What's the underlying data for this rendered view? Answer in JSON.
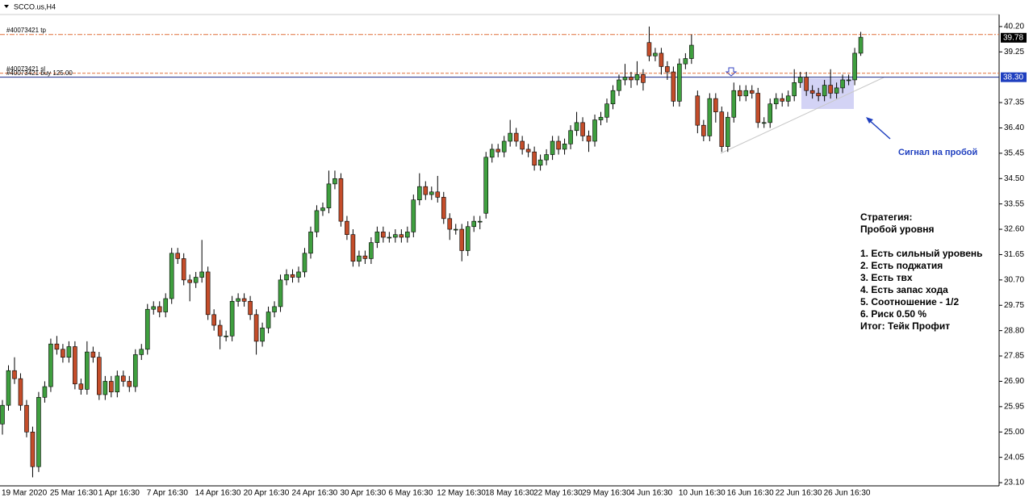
{
  "header": {
    "symbol": "SCCO.us,H4"
  },
  "chart_data": {
    "type": "candlestick",
    "categories": [
      "19 Mar 2020",
      null,
      null,
      null,
      null,
      null,
      null,
      null,
      "25 Mar 16:30",
      null,
      null,
      null,
      null,
      null,
      null,
      null,
      "1 Apr 16:30",
      null,
      null,
      null,
      null,
      null,
      null,
      null,
      "7 Apr 16:30",
      null,
      null,
      null,
      null,
      null,
      null,
      null,
      "14 Apr 16:30",
      null,
      null,
      null,
      null,
      null,
      null,
      null,
      "20 Apr 16:30",
      null,
      null,
      null,
      null,
      null,
      null,
      null,
      "24 Apr 16:30",
      null,
      null,
      null,
      null,
      null,
      null,
      null,
      "30 Apr 16:30",
      null,
      null,
      null,
      null,
      null,
      null,
      null,
      "6 May 16:30",
      null,
      null,
      null,
      null,
      null,
      null,
      null,
      "12 May 16:30",
      null,
      null,
      null,
      null,
      null,
      null,
      null,
      "18 May 16:30",
      null,
      null,
      null,
      null,
      null,
      null,
      null,
      "22 May 16:30",
      null,
      null,
      null,
      null,
      null,
      null,
      null,
      "29 May 16:30",
      null,
      null,
      null,
      null,
      null,
      null,
      null,
      "4 Jun 16:30",
      null,
      null,
      null,
      null,
      null,
      null,
      null,
      "10 Jun 16:30",
      null,
      null,
      null,
      null,
      null,
      null,
      null,
      "16 Jun 16:30",
      null,
      null,
      null,
      null,
      null,
      null,
      null,
      "22 Jun 16:30",
      null,
      null,
      null,
      null,
      null,
      null,
      null,
      "26 Jun 16:30",
      null,
      null,
      null,
      null,
      null,
      null
    ],
    "open": [
      25.3,
      26.0,
      27.3,
      27.0,
      26.0,
      25.0,
      23.7,
      26.3,
      26.7,
      28.3,
      28.1,
      27.8,
      28.2,
      26.8,
      26.6,
      28.0,
      27.8,
      26.4,
      26.9,
      26.5,
      27.1,
      26.9,
      26.7,
      27.9,
      28.1,
      29.6,
      29.7,
      29.5,
      30.0,
      31.7,
      31.5,
      30.7,
      30.6,
      30.8,
      31.0,
      29.4,
      29.0,
      28.6,
      28.6,
      29.9,
      30.0,
      29.9,
      29.4,
      28.4,
      28.9,
      29.5,
      29.7,
      30.7,
      30.9,
      30.8,
      31.0,
      31.7,
      32.5,
      33.3,
      33.4,
      34.3,
      34.5,
      32.9,
      32.4,
      31.4,
      31.6,
      31.5,
      32.1,
      32.5,
      32.3,
      32.3,
      32.4,
      32.3,
      32.5,
      33.7,
      34.2,
      33.9,
      34.0,
      33.8,
      33.0,
      32.6,
      32.6,
      31.8,
      32.7,
      32.9,
      33.2,
      35.3,
      35.6,
      35.5,
      35.9,
      36.2,
      35.9,
      35.6,
      35.5,
      35.0,
      35.2,
      35.4,
      35.9,
      35.6,
      35.8,
      36.3,
      36.6,
      36.1,
      35.9,
      36.7,
      36.8,
      37.3,
      37.8,
      38.2,
      38.3,
      38.2,
      38.4,
      39.6,
      39.1,
      39.2,
      38.7,
      38.5,
      37.4,
      38.8,
      39.0,
      37.6,
      36.5,
      36.1,
      37.5,
      37.0,
      35.7,
      36.8,
      37.8,
      37.6,
      37.8,
      37.7,
      36.6,
      36.6,
      37.3,
      37.5,
      37.4,
      37.6,
      38.1,
      38.3,
      37.8,
      37.7,
      37.6,
      38.0,
      37.7,
      37.9,
      38.2,
      38.2,
      39.2
    ],
    "high": [
      26.2,
      27.5,
      27.8,
      27.2,
      26.2,
      25.2,
      26.5,
      26.9,
      28.5,
      28.6,
      28.3,
      28.4,
      28.4,
      27.0,
      28.4,
      28.2,
      28.0,
      27.1,
      27.1,
      27.3,
      27.3,
      27.1,
      28.1,
      28.3,
      29.8,
      29.9,
      29.9,
      30.2,
      31.9,
      31.9,
      31.7,
      30.9,
      31.0,
      32.2,
      31.2,
      29.6,
      29.2,
      28.8,
      30.1,
      30.2,
      30.2,
      30.1,
      29.6,
      29.1,
      29.7,
      29.9,
      30.9,
      31.1,
      31.1,
      31.2,
      31.9,
      32.7,
      33.5,
      33.6,
      34.8,
      34.8,
      34.7,
      33.1,
      32.6,
      31.8,
      31.8,
      32.3,
      32.7,
      32.7,
      32.5,
      32.6,
      32.6,
      32.7,
      33.9,
      34.7,
      34.4,
      34.2,
      34.6,
      34.0,
      33.2,
      32.8,
      32.8,
      32.9,
      33.1,
      33.1,
      35.5,
      35.8,
      35.8,
      36.1,
      36.7,
      36.4,
      36.1,
      35.8,
      35.7,
      35.4,
      35.6,
      36.1,
      36.1,
      36.0,
      36.5,
      37.0,
      36.8,
      36.3,
      36.9,
      37.0,
      37.5,
      38.0,
      38.4,
      38.8,
      38.5,
      38.9,
      38.6,
      40.2,
      39.4,
      39.4,
      38.9,
      38.7,
      39.0,
      39.2,
      39.9,
      37.8,
      36.7,
      37.7,
      37.7,
      37.2,
      37.0,
      38.1,
      38.0,
      38.0,
      38.0,
      37.9,
      36.8,
      37.5,
      37.7,
      37.7,
      37.8,
      38.6,
      38.5,
      38.5,
      38.0,
      37.9,
      38.2,
      38.6,
      38.1,
      38.4,
      38.4,
      39.4,
      40.0
    ],
    "low": [
      24.9,
      25.8,
      26.8,
      25.8,
      24.8,
      23.3,
      23.5,
      26.1,
      26.5,
      27.9,
      27.6,
      27.6,
      26.6,
      26.4,
      26.4,
      27.6,
      26.2,
      26.2,
      26.3,
      26.3,
      26.7,
      26.5,
      26.5,
      27.7,
      27.9,
      29.4,
      29.3,
      29.3,
      29.8,
      31.3,
      30.5,
      29.9,
      30.4,
      30.6,
      29.2,
      28.8,
      28.1,
      28.4,
      28.4,
      29.7,
      29.7,
      29.2,
      27.9,
      28.2,
      28.7,
      29.3,
      29.5,
      30.5,
      30.6,
      30.6,
      30.8,
      31.5,
      32.3,
      33.1,
      33.2,
      34.1,
      32.7,
      32.2,
      31.2,
      31.2,
      31.3,
      31.3,
      31.9,
      32.1,
      32.1,
      32.1,
      32.1,
      32.1,
      32.3,
      33.5,
      33.7,
      33.7,
      33.6,
      32.8,
      32.2,
      32.4,
      31.4,
      31.6,
      32.5,
      32.6,
      33.0,
      35.1,
      35.3,
      35.3,
      35.7,
      35.7,
      35.4,
      35.3,
      34.8,
      34.8,
      35.0,
      35.2,
      35.4,
      35.4,
      35.6,
      36.1,
      35.9,
      35.5,
      35.7,
      36.5,
      36.6,
      37.1,
      37.6,
      38.0,
      37.9,
      38.0,
      37.8,
      38.9,
      38.9,
      38.4,
      38.2,
      37.2,
      37.2,
      38.6,
      38.8,
      36.2,
      35.9,
      35.9,
      36.6,
      35.5,
      35.5,
      36.6,
      37.4,
      37.4,
      37.5,
      36.4,
      36.4,
      36.4,
      37.1,
      37.2,
      37.2,
      37.4,
      37.9,
      37.6,
      37.5,
      37.4,
      37.4,
      37.5,
      37.5,
      37.7,
      38.0,
      38.0,
      39.1
    ],
    "close": [
      26.0,
      27.3,
      27.0,
      26.0,
      25.0,
      23.7,
      26.3,
      26.7,
      28.3,
      28.1,
      27.8,
      28.2,
      26.8,
      26.6,
      28.0,
      27.8,
      26.4,
      26.9,
      26.5,
      27.1,
      26.9,
      26.7,
      27.9,
      28.1,
      29.6,
      29.7,
      29.5,
      30.0,
      31.7,
      31.5,
      30.7,
      30.6,
      30.8,
      31.0,
      29.4,
      29.0,
      28.6,
      28.6,
      29.9,
      30.0,
      29.9,
      29.4,
      28.4,
      28.9,
      29.5,
      29.7,
      30.7,
      30.9,
      30.8,
      31.0,
      31.7,
      32.5,
      33.3,
      33.4,
      34.3,
      34.5,
      32.9,
      32.4,
      31.4,
      31.6,
      31.5,
      32.1,
      32.5,
      32.3,
      32.3,
      32.4,
      32.3,
      32.5,
      33.7,
      34.2,
      33.9,
      34.0,
      33.8,
      33.0,
      32.6,
      32.6,
      31.8,
      32.7,
      32.9,
      32.9,
      35.3,
      35.6,
      35.5,
      35.9,
      36.2,
      35.9,
      35.6,
      35.5,
      35.0,
      35.2,
      35.4,
      35.9,
      35.6,
      35.8,
      36.3,
      36.6,
      36.1,
      35.9,
      36.7,
      36.8,
      37.3,
      37.8,
      38.2,
      38.3,
      38.2,
      38.4,
      38.1,
      39.1,
      39.2,
      38.7,
      38.5,
      37.4,
      38.8,
      39.0,
      39.5,
      36.5,
      36.1,
      37.5,
      37.0,
      35.7,
      36.8,
      37.8,
      37.6,
      37.8,
      37.7,
      36.6,
      36.6,
      37.3,
      37.5,
      37.4,
      37.6,
      38.1,
      38.3,
      37.8,
      37.7,
      37.6,
      38.0,
      37.7,
      37.9,
      38.2,
      38.2,
      39.2,
      39.8
    ],
    "up_color": "#3f9f3f",
    "down_color": "#c44d2a",
    "ylim": [
      22.98,
      40.59
    ],
    "yticks": [
      {
        "value": 40.2,
        "label": "40.20"
      },
      39.25,
      37.35,
      {
        "value": 36.4,
        "label": "36.40"
      },
      35.45,
      {
        "value": 34.5,
        "label": "34.50"
      },
      33.55,
      {
        "value": 32.6,
        "label": "32.60"
      },
      31.65,
      {
        "value": 30.7,
        "label": "30.70"
      },
      29.75,
      {
        "value": 28.8,
        "label": "28.80"
      },
      27.85,
      {
        "value": 26.9,
        "label": "26.90"
      },
      25.95,
      {
        "value": 25,
        "label": "25.00"
      },
      24.05,
      {
        "value": 23.1,
        "label": "23.10"
      }
    ],
    "levels": [
      {
        "name": "#40073421 tp",
        "value": 39.9,
        "color": "#e0703c"
      },
      {
        "name": "#40073421 sl",
        "value": 38.45,
        "color": "#e0703c"
      },
      {
        "name": "#40073421 buy 125.00",
        "value": 38.3,
        "color": "#1a2a8a"
      }
    ],
    "price_labels": [
      {
        "value": 39.78,
        "label": "39.78",
        "color": "#000000"
      },
      {
        "value": 38.3,
        "label": "38.30",
        "color": "#1f3fbf"
      }
    ],
    "signal": "Сигнал на пробой",
    "strategy_title": "Стратегия:",
    "strategy_name": "Пробой уровня",
    "strategy_points": [
      "1. Есть сильный уровень",
      "2. Есть поджатия",
      "3. Есть твх",
      "4. Есть запас хода",
      "5. Соотношение - 1/2",
      "6. Риск 0.50 %"
    ],
    "strategy_result": "Итог: Тейк Профит"
  }
}
